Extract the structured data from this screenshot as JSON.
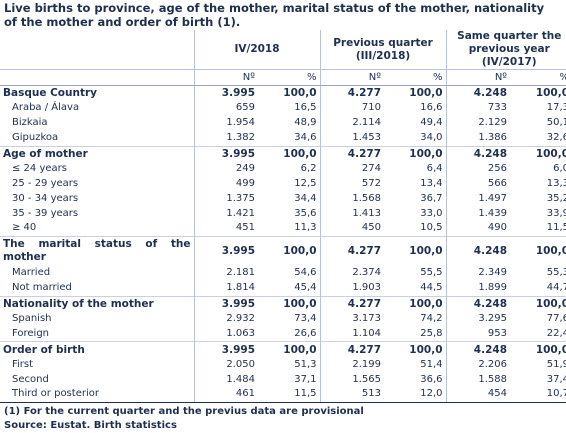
{
  "title": "Live births to province, age of the mother, marital status of the mother, nationality of the mother and order of birth (1).",
  "columns": {
    "groups": [
      "IV/2018",
      "Previous quarter\n(III/2018)",
      "Same quarter the previous year\n(IV/2017)"
    ],
    "n_label": "Nº",
    "p_label": "%"
  },
  "rows": [
    {
      "label": "Basque Country",
      "v": [
        "3.995",
        "100,0",
        "4.277",
        "100,0",
        "4.248",
        "100,0"
      ]
    },
    {
      "label": "Araba / Álava",
      "v": [
        "659",
        "16,5",
        "710",
        "16,6",
        "733",
        "17,3"
      ]
    },
    {
      "label": "Bizkaia",
      "v": [
        "1.954",
        "48,9",
        "2.114",
        "49,4",
        "2.129",
        "50,1"
      ]
    },
    {
      "label": "Gipuzkoa",
      "v": [
        "1.382",
        "34,6",
        "1.453",
        "34,0",
        "1.386",
        "32,6"
      ]
    },
    {
      "label": "Age of mother",
      "v": [
        "3.995",
        "100,0",
        "4.277",
        "100,0",
        "4.248",
        "100,0"
      ]
    },
    {
      "label": "≤ 24 years",
      "v": [
        "249",
        "6,2",
        "274",
        "6,4",
        "256",
        "6,0"
      ]
    },
    {
      "label": "25 - 29 years",
      "v": [
        "499",
        "12,5",
        "572",
        "13,4",
        "566",
        "13,3"
      ]
    },
    {
      "label": "30 - 34 years",
      "v": [
        "1.375",
        "34,4",
        "1.568",
        "36,7",
        "1.497",
        "35,2"
      ]
    },
    {
      "label": "35 - 39 years",
      "v": [
        "1.421",
        "35,6",
        "1.413",
        "33,0",
        "1.439",
        "33,9"
      ]
    },
    {
      "label": "≥ 40",
      "v": [
        "451",
        "11,3",
        "450",
        "10,5",
        "490",
        "11,5"
      ]
    },
    {
      "label": "The marital status of the mother",
      "v": [
        "3.995",
        "100,0",
        "4.277",
        "100,0",
        "4.248",
        "100,0"
      ]
    },
    {
      "label": "Married",
      "v": [
        "2.181",
        "54,6",
        "2.374",
        "55,5",
        "2.349",
        "55,3"
      ]
    },
    {
      "label": "Not married",
      "v": [
        "1.814",
        "45,4",
        "1.903",
        "44,5",
        "1.899",
        "44,7"
      ]
    },
    {
      "label": "Nationality of the mother",
      "v": [
        "3.995",
        "100,0",
        "4.277",
        "100,0",
        "4.248",
        "100,0"
      ]
    },
    {
      "label": "Spanish",
      "v": [
        "2.932",
        "73,4",
        "3.173",
        "74,2",
        "3.295",
        "77,6"
      ]
    },
    {
      "label": "Foreign",
      "v": [
        "1.063",
        "26,6",
        "1.104",
        "25,8",
        "953",
        "22,4"
      ]
    },
    {
      "label": "Order of birth",
      "v": [
        "3.995",
        "100,0",
        "4.277",
        "100,0",
        "4.248",
        "100,0"
      ]
    },
    {
      "label": "First",
      "v": [
        "2.050",
        "51,3",
        "2.199",
        "51,4",
        "2.206",
        "51,9"
      ]
    },
    {
      "label": "Second",
      "v": [
        "1.484",
        "37,1",
        "1.565",
        "36,6",
        "1.588",
        "37,4"
      ]
    },
    {
      "label": "Third or posterior",
      "v": [
        "461",
        "11,5",
        "513",
        "12,0",
        "454",
        "10,7"
      ]
    }
  ],
  "notes": {
    "footnote": "(1) For the current quarter and the previus data are provisional",
    "source": "Source: Eustat. Birth statistics"
  }
}
